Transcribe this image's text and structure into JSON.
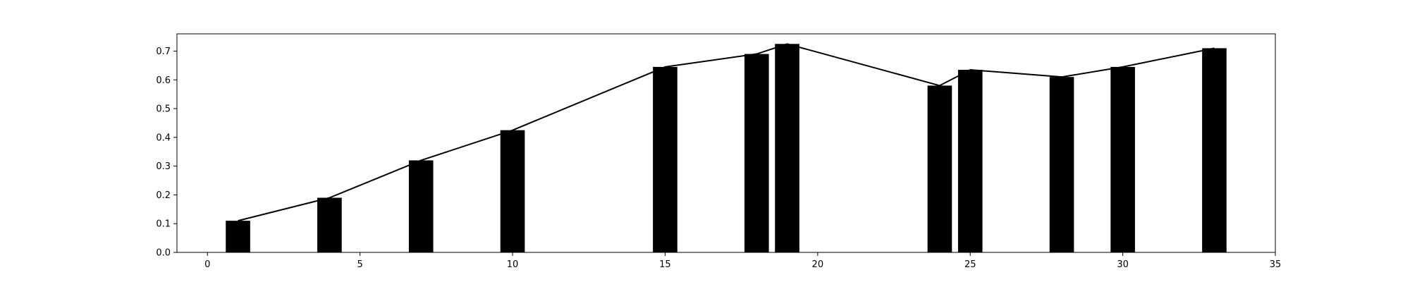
{
  "chart_data": {
    "type": "bar",
    "x": [
      1,
      4,
      7,
      10,
      15,
      18,
      19,
      24,
      25,
      28,
      30,
      33
    ],
    "values": [
      0.11,
      0.19,
      0.32,
      0.425,
      0.645,
      0.69,
      0.725,
      0.58,
      0.635,
      0.61,
      0.645,
      0.71
    ],
    "overlay": {
      "type": "line",
      "x": [
        1,
        4,
        7,
        10,
        15,
        18,
        19,
        24,
        25,
        28,
        30,
        33
      ],
      "values": [
        0.11,
        0.19,
        0.32,
        0.425,
        0.645,
        0.69,
        0.725,
        0.58,
        0.635,
        0.61,
        0.645,
        0.71
      ]
    },
    "title": "",
    "xlabel": "",
    "ylabel": "",
    "xlim": [
      -1,
      35
    ],
    "ylim": [
      0,
      0.76
    ],
    "xticks": [
      0,
      5,
      10,
      15,
      20,
      25,
      30,
      35
    ],
    "yticks": [
      0.0,
      0.1,
      0.2,
      0.3,
      0.4,
      0.5,
      0.6,
      0.7
    ],
    "xtick_labels": [
      "0",
      "5",
      "10",
      "15",
      "20",
      "25",
      "30",
      "35"
    ],
    "ytick_labels": [
      "0.0",
      "0.1",
      "0.2",
      "0.3",
      "0.4",
      "0.5",
      "0.6",
      "0.7"
    ],
    "bar_width": 0.8,
    "grid": false,
    "legend": "none",
    "bar_color": "#000000",
    "line_color": "#000000"
  }
}
